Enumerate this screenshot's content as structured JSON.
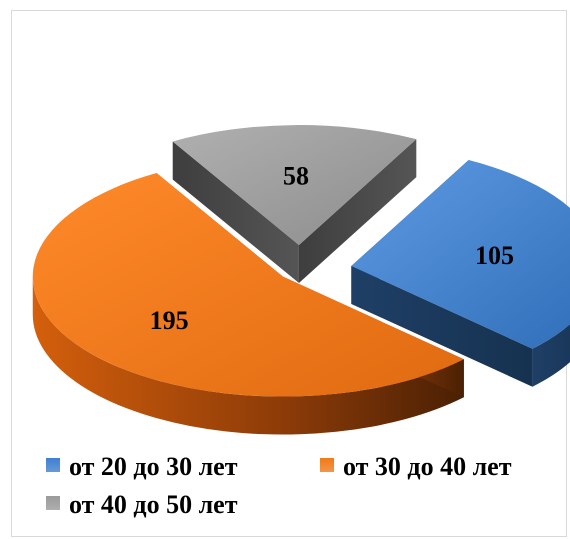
{
  "chart_data": {
    "type": "pie",
    "style": "3d-exploded",
    "categories": [
      "от 20 до 30 лет",
      "от 30 до 40 лет",
      "от 40 до 50 лет"
    ],
    "values": [
      105,
      195,
      58
    ],
    "colors": [
      "#3f7fcf",
      "#f07a1a",
      "#9a9a9a"
    ],
    "legend_position": "bottom",
    "title": ""
  },
  "legend": {
    "items": [
      {
        "label": "от 20 до 30 лет",
        "color": "#3f7fcf"
      },
      {
        "label": "от 30 до 40 лет",
        "color": "#f07a1a"
      },
      {
        "label": "от 40 до 50 лет",
        "color": "#9a9a9a"
      }
    ]
  }
}
